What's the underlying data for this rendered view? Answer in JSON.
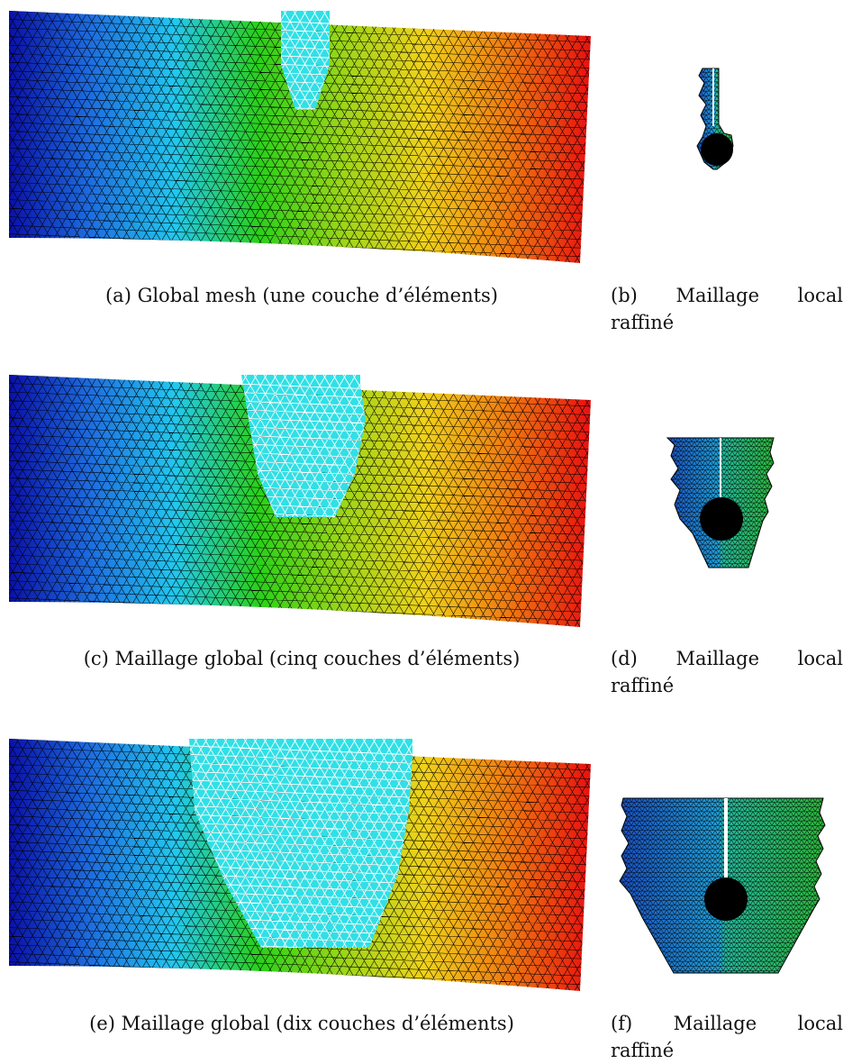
{
  "figure": {
    "rows": [
      {
        "global_caption": "(a) Global mesh (une couche d’éléments)",
        "local_caption_line1": "(b)  Maillage  local",
        "local_caption_line2": "raffiné",
        "inner_layers": 1
      },
      {
        "global_caption": "(c) Maillage global (cinq couches d’éléments)",
        "local_caption_line1": "(d)  Maillage  local",
        "local_caption_line2": "raffiné",
        "inner_layers": 5
      },
      {
        "global_caption": "(e) Maillage global (dix couches d’éléments)",
        "local_caption_line1": "(f)  Maillage  local",
        "local_caption_line2": "raffiné",
        "inner_layers": 10
      }
    ],
    "colors": {
      "gradient": [
        "#0a10a8",
        "#1e6fe0",
        "#22c8ee",
        "#2ad01a",
        "#9ad618",
        "#f0d21a",
        "#f07a10",
        "#e81010"
      ],
      "refined_region": "#2fe0e6",
      "mesh_lines": "#000000",
      "hole": "#000000"
    }
  }
}
